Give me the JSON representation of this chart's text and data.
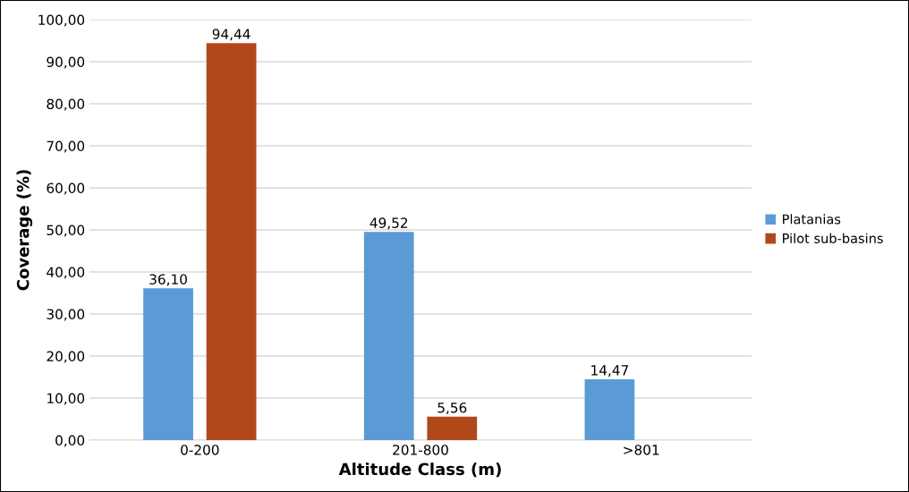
{
  "chart_data": {
    "type": "bar",
    "xlabel": "Altitude Class (m)",
    "ylabel": "Coverage (%)",
    "categories": [
      "0-200",
      "201-800",
      ">801"
    ],
    "series": [
      {
        "name": "Platanias",
        "color": "#5b9bd5",
        "values": [
          36.1,
          49.52,
          14.47
        ],
        "value_labels": [
          "36,10",
          "49,52",
          "14,47"
        ]
      },
      {
        "name": "Pilot sub-basins",
        "color": "#b0481a",
        "values": [
          94.44,
          5.56,
          null
        ],
        "value_labels": [
          "94,44",
          "5,56",
          null
        ]
      }
    ],
    "ylim": [
      0,
      100
    ],
    "yticks": [
      {
        "value": 0,
        "label": "0,00"
      },
      {
        "value": 10,
        "label": "10,00"
      },
      {
        "value": 20,
        "label": "20,00"
      },
      {
        "value": 30,
        "label": "30,00"
      },
      {
        "value": 40,
        "label": "40,00"
      },
      {
        "value": 50,
        "label": "50,00"
      },
      {
        "value": 60,
        "label": "60,00"
      },
      {
        "value": 70,
        "label": "70,00"
      },
      {
        "value": 80,
        "label": "80,00"
      },
      {
        "value": 90,
        "label": "90,00"
      },
      {
        "value": 100,
        "label": "100,00"
      }
    ],
    "grid": "y",
    "legend": "right"
  }
}
